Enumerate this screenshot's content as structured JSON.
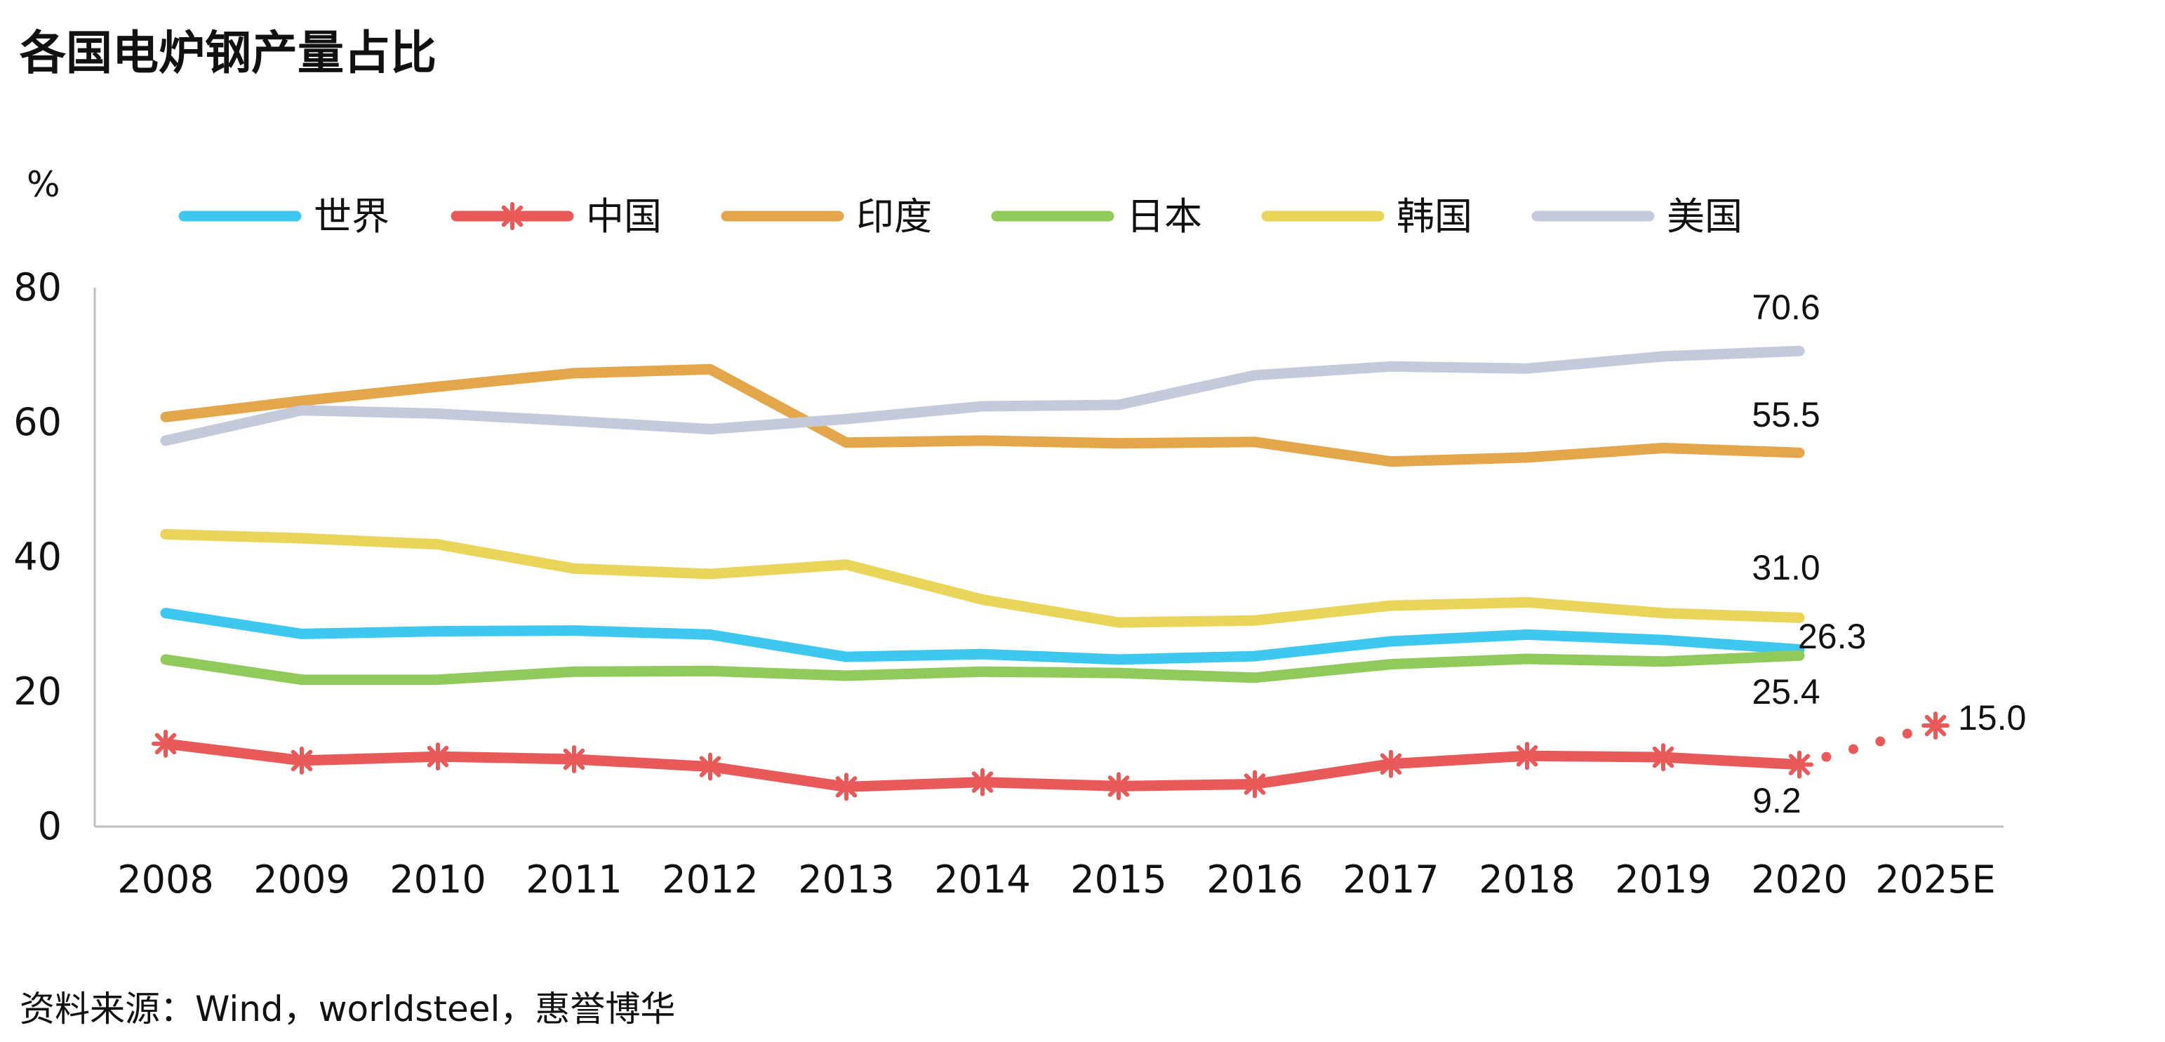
{
  "title": "各国电炉钢产量占比",
  "source": "资料来源：Wind，worldsteel，惠誉博华",
  "chart_data": {
    "type": "line",
    "unit": "%",
    "categories": [
      "2008",
      "2009",
      "2010",
      "2011",
      "2012",
      "2013",
      "2014",
      "2015",
      "2016",
      "2017",
      "2018",
      "2019",
      "2020",
      "2025E"
    ],
    "ylim": [
      0,
      80
    ],
    "yticks": [
      "0",
      "20",
      "40",
      "60",
      "80"
    ],
    "grid": false,
    "legend_position": "top",
    "series": [
      {
        "name": "世界",
        "color": "#3ec8f0",
        "marker": "none",
        "values": [
          31.7,
          28.6,
          29.0,
          29.1,
          28.5,
          25.2,
          25.6,
          24.8,
          25.3,
          27.5,
          28.5,
          27.7,
          26.3,
          null
        ]
      },
      {
        "name": "中国",
        "color": "#e85a5a",
        "marker": "asterisk",
        "values": [
          12.3,
          9.8,
          10.4,
          10.0,
          8.9,
          5.9,
          6.6,
          6.0,
          6.3,
          9.3,
          10.5,
          10.3,
          9.2,
          null
        ],
        "projection": {
          "from_index": 12,
          "to_index": 13,
          "values": [
            9.2,
            15.0
          ]
        }
      },
      {
        "name": "印度",
        "color": "#e3a64a",
        "marker": "none",
        "values": [
          60.8,
          63.2,
          65.3,
          67.3,
          67.9,
          57.0,
          57.3,
          56.9,
          57.1,
          54.2,
          54.8,
          56.2,
          55.5,
          null
        ]
      },
      {
        "name": "日本",
        "color": "#8fca5a",
        "marker": "none",
        "values": [
          24.8,
          21.8,
          21.8,
          23.0,
          23.1,
          22.4,
          23.0,
          22.8,
          22.1,
          24.1,
          24.9,
          24.5,
          25.4,
          null
        ]
      },
      {
        "name": "韩国",
        "color": "#ead45a",
        "marker": "none",
        "values": [
          43.4,
          42.8,
          41.9,
          38.3,
          37.5,
          38.9,
          33.7,
          30.3,
          30.6,
          32.8,
          33.3,
          31.7,
          31.0,
          null
        ]
      },
      {
        "name": "美国",
        "color": "#c3cadb",
        "marker": "none",
        "values": [
          57.3,
          61.8,
          61.3,
          60.2,
          59.0,
          60.5,
          62.4,
          62.6,
          67.0,
          68.3,
          68.0,
          69.8,
          70.6,
          null
        ]
      }
    ],
    "data_labels": [
      {
        "text": "70.6",
        "series": "美国"
      },
      {
        "text": "55.5",
        "series": "印度"
      },
      {
        "text": "31.0",
        "series": "韩国"
      },
      {
        "text": "26.3",
        "series": "世界"
      },
      {
        "text": "25.4",
        "series": "日本"
      },
      {
        "text": "9.2",
        "series": "中国"
      },
      {
        "text": "15.0",
        "series": "中国"
      }
    ]
  }
}
